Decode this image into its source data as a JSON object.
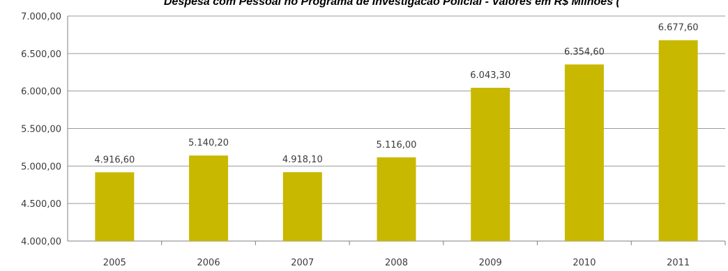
{
  "title": "Despesa com Pessoal no Programa de Investigacao Policial - Valores em R$ Milhoes (",
  "colors": {
    "bar": "#c9b800",
    "grid": "#9a9a9a",
    "axis": "#7f7f7f",
    "text": "#3a3a3a"
  },
  "chart_data": {
    "type": "bar",
    "categories": [
      "2005",
      "2006",
      "2007",
      "2008",
      "2009",
      "2010",
      "2011"
    ],
    "values": [
      4916.6,
      5140.2,
      4918.1,
      5116.0,
      6043.3,
      6354.6,
      6677.6
    ],
    "value_labels": [
      "4.916,60",
      "5.140,20",
      "4.918,10",
      "5.116,00",
      "6.043,30",
      "6.354,60",
      "6.677,60"
    ],
    "ylim": [
      4000,
      7000
    ],
    "y_ticks": [
      4000,
      4500,
      5000,
      5500,
      6000,
      6500,
      7000
    ],
    "y_tick_labels": [
      "4.000,00",
      "4.500,00",
      "5.000,00",
      "5.500,00",
      "6.000,00",
      "6.500,00",
      "7.000,00"
    ],
    "grid": true,
    "legend": "none",
    "xlabel": "",
    "ylabel": ""
  }
}
